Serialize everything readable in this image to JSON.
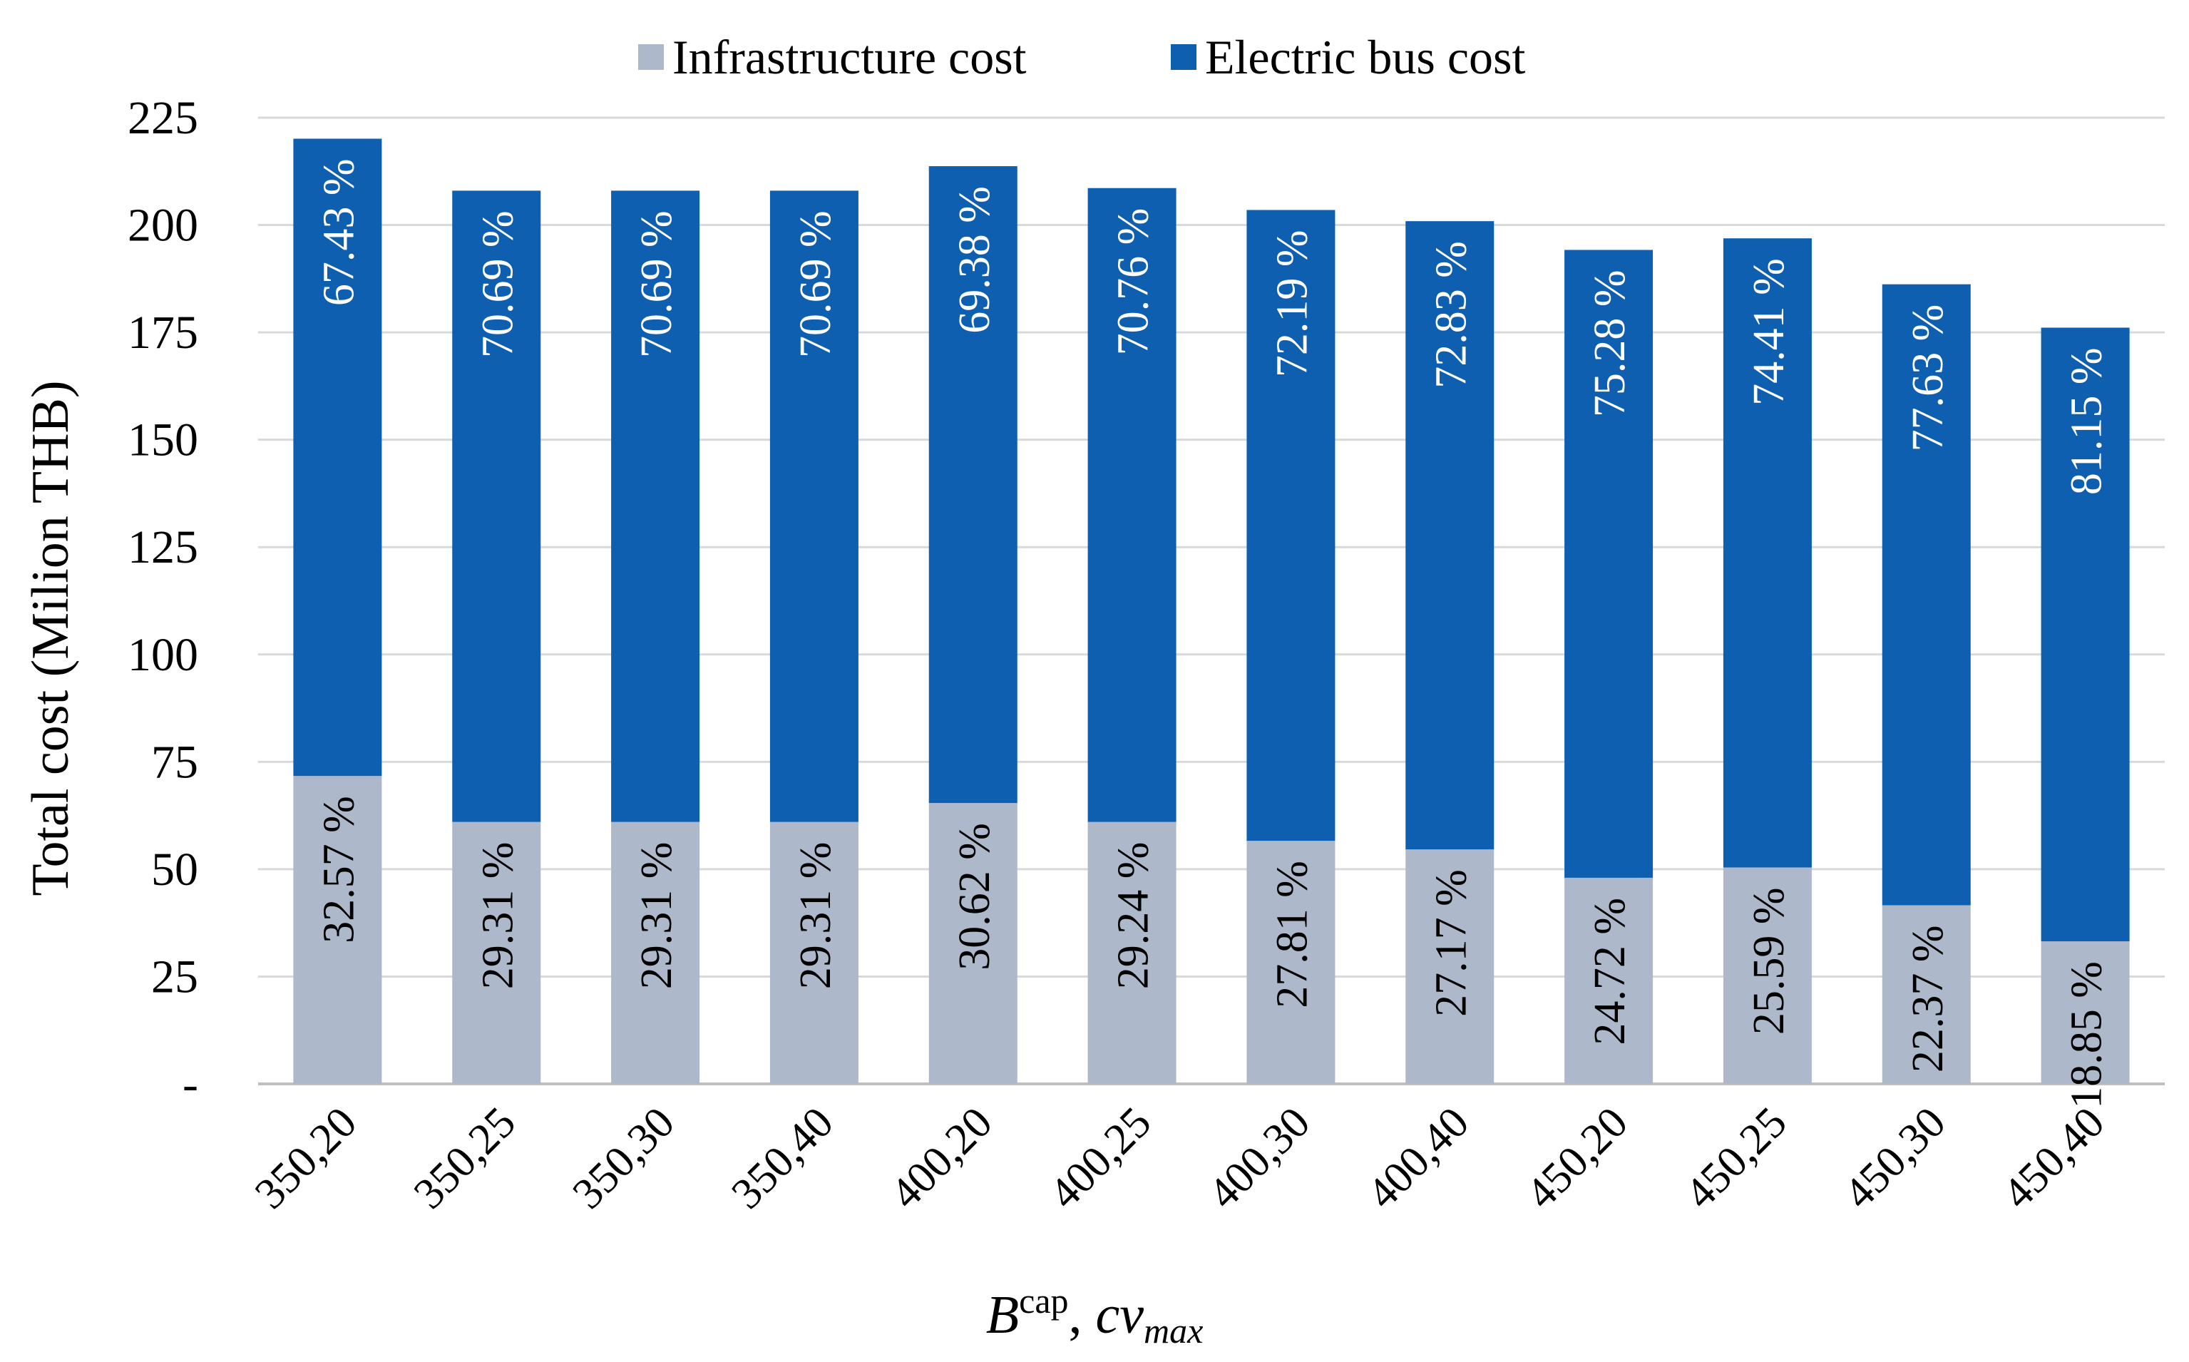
{
  "chart_data": {
    "type": "bar",
    "stacked": true,
    "title": "",
    "ylabel": "Total cost (Milion THB)",
    "xlabel": {
      "main": "B",
      "superscript": "cap",
      "separator": ", ",
      "second": "cv",
      "subscript": "max"
    },
    "ylim": [
      0,
      225
    ],
    "yticks": [
      0,
      25,
      50,
      75,
      100,
      125,
      150,
      175,
      200,
      225
    ],
    "ytick_labels": [
      "-",
      "25",
      "50",
      "75",
      "100",
      "125",
      "150",
      "175",
      "200",
      "225"
    ],
    "grid": true,
    "legend_position": "top",
    "categories": [
      "350,20",
      "350,25",
      "350,30",
      "350,40",
      "400,20",
      "400,25",
      "400,30",
      "400,40",
      "450,20",
      "450,25",
      "450,30",
      "450,40"
    ],
    "series": [
      {
        "name": "Infrastructure cost",
        "color": "#adb9ca",
        "values": [
          71.7,
          61.0,
          61.0,
          61.0,
          65.4,
          61.0,
          56.6,
          54.6,
          48.0,
          50.4,
          41.6,
          33.2
        ],
        "labels": [
          "32.57 %",
          "29.31 %",
          "29.31 %",
          "29.31 %",
          "30.62 %",
          "29.24 %",
          "27.81 %",
          "27.17 %",
          "24.72 %",
          "25.59 %",
          "22.37 %",
          "18.85 %"
        ]
      },
      {
        "name": "Electric bus cost",
        "color": "#0f5fb0",
        "values": [
          148.4,
          147.0,
          147.0,
          147.0,
          148.3,
          147.6,
          146.9,
          146.3,
          146.2,
          146.5,
          144.6,
          142.9
        ],
        "labels": [
          "67.43 %",
          "70.69 %",
          "70.69 %",
          "70.69 %",
          "69.38 %",
          "70.76 %",
          "72.19 %",
          "72.83 %",
          "75.28 %",
          "74.41 %",
          "77.63 %",
          "81.15 %"
        ]
      }
    ]
  }
}
